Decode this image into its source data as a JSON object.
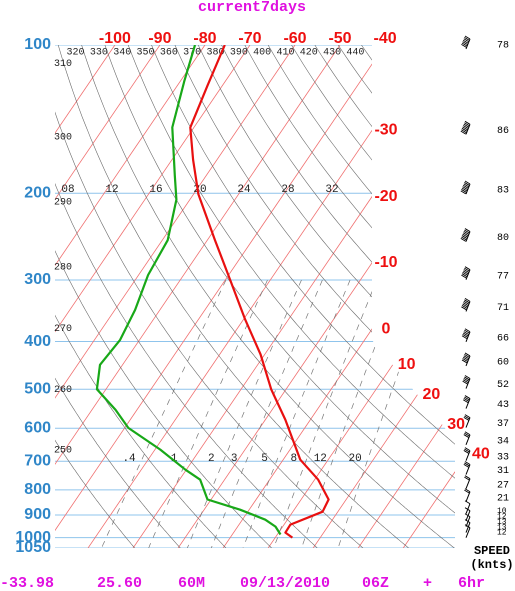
{
  "chart_data": {
    "type": "skew-t",
    "title": "current7days",
    "ylim": [
      100,
      1050
    ],
    "log_y": true,
    "xlim": [
      -113.3,
      -42.9
    ],
    "pressure_ticks": [
      100,
      200,
      300,
      400,
      500,
      600,
      700,
      800,
      900,
      1000,
      1050
    ],
    "temperature_ticks": [
      -100,
      -90,
      -80,
      -70,
      -60,
      -50,
      -40,
      -30,
      -20,
      -10,
      0,
      10,
      20,
      30,
      40
    ],
    "theta_ticks": [
      250,
      260,
      270,
      280,
      290,
      300,
      310,
      320,
      330,
      340,
      350,
      360,
      370,
      380,
      390,
      400,
      410,
      420,
      430,
      440
    ],
    "mixing_ratio_ticks": [
      {
        "value": 0.4,
        "label": ".4"
      },
      1,
      2,
      3,
      5,
      8,
      12,
      20
    ],
    "upper_ratio_labels": [
      "08",
      "12",
      "16",
      "20",
      "24",
      "28",
      "32"
    ],
    "series": [
      {
        "color": "#e81010",
        "pressure": [
          100,
          121,
          147,
          171,
          201,
          249,
          300,
          361,
          425,
          500,
          576,
          695,
          763,
          837,
          886,
          941,
          977,
          1000
        ],
        "values": [
          -75.6,
          -73.3,
          -70.8,
          -65.3,
          -58.9,
          -48.3,
          -38.9,
          -29.6,
          -20.9,
          -13.3,
          -5.6,
          3.8,
          10.8,
          16.1,
          16.6,
          11.4,
          11.5,
          13.8
        ]
      },
      {
        "color": "#18a818",
        "pressure": [
          100,
          118,
          147,
          184,
          206,
          249,
          293,
          345,
          397,
          446,
          500,
          550,
          599,
          663,
          728,
          763,
          837,
          878,
          920,
          950,
          986
        ],
        "values": [
          -82.2,
          -79.2,
          -74.8,
          -67.0,
          -63.0,
          -58.8,
          -57.9,
          -55.5,
          -54.3,
          -55.0,
          -52.0,
          -44.8,
          -39.2,
          -28.8,
          -20.2,
          -15.4,
          -10.8,
          -2.0,
          5.1,
          8.4,
          10.7
        ]
      }
    ],
    "wind": {
      "pressure": [
        100,
        149,
        197,
        246,
        294,
        341,
        393,
        440,
        489,
        537,
        587,
        636,
        685,
        731,
        781,
        830,
        878,
        907,
        933,
        959,
        982
      ],
      "speed": [
        78,
        86,
        83,
        80,
        77,
        71,
        66,
        60,
        52,
        43,
        37,
        34,
        33,
        31,
        27,
        21,
        10,
        12,
        13,
        13,
        12
      ]
    },
    "wind_label": "SPEED",
    "wind_unit": "(knts)",
    "footer": [
      "-33.98",
      "25.60",
      "60M",
      "09/13/2010",
      "06Z",
      "+",
      "6hr"
    ]
  }
}
